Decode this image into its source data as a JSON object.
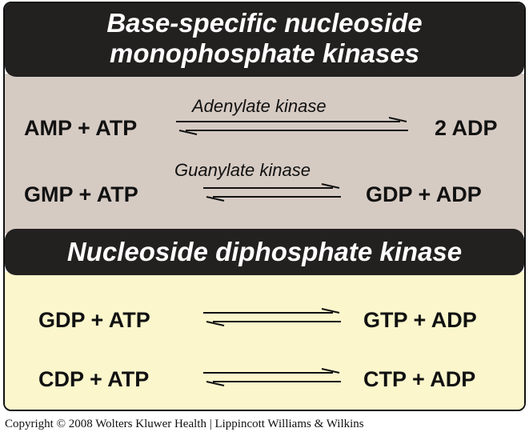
{
  "section_monophosphate": {
    "title_line1": "Base-specific nucleoside",
    "title_line2": "monophosphate kinases",
    "reactions": [
      {
        "left": "AMP + ATP",
        "enzyme": "Adenylate kinase",
        "right": "2 ADP"
      },
      {
        "left": "GMP + ATP",
        "enzyme": "Guanylate kinase",
        "right": "GDP + ADP"
      }
    ]
  },
  "section_diphosphate": {
    "title": "Nucleoside diphosphate kinase",
    "reactions": [
      {
        "left": "GDP + ATP",
        "right": "GTP + ADP"
      },
      {
        "left": "CDP + ATP",
        "right": "CTP + ADP"
      }
    ]
  },
  "colors": {
    "header_bg": "#232020",
    "panel_top_bg": "#d6cbc3",
    "panel_bottom_bg": "#fbf6cc"
  },
  "arrow_icon": "reversible-reaction-arrows-icon",
  "copyright": "Copyright © 2008 Wolters Kluwer Health | Lippincott Williams & Wilkins"
}
